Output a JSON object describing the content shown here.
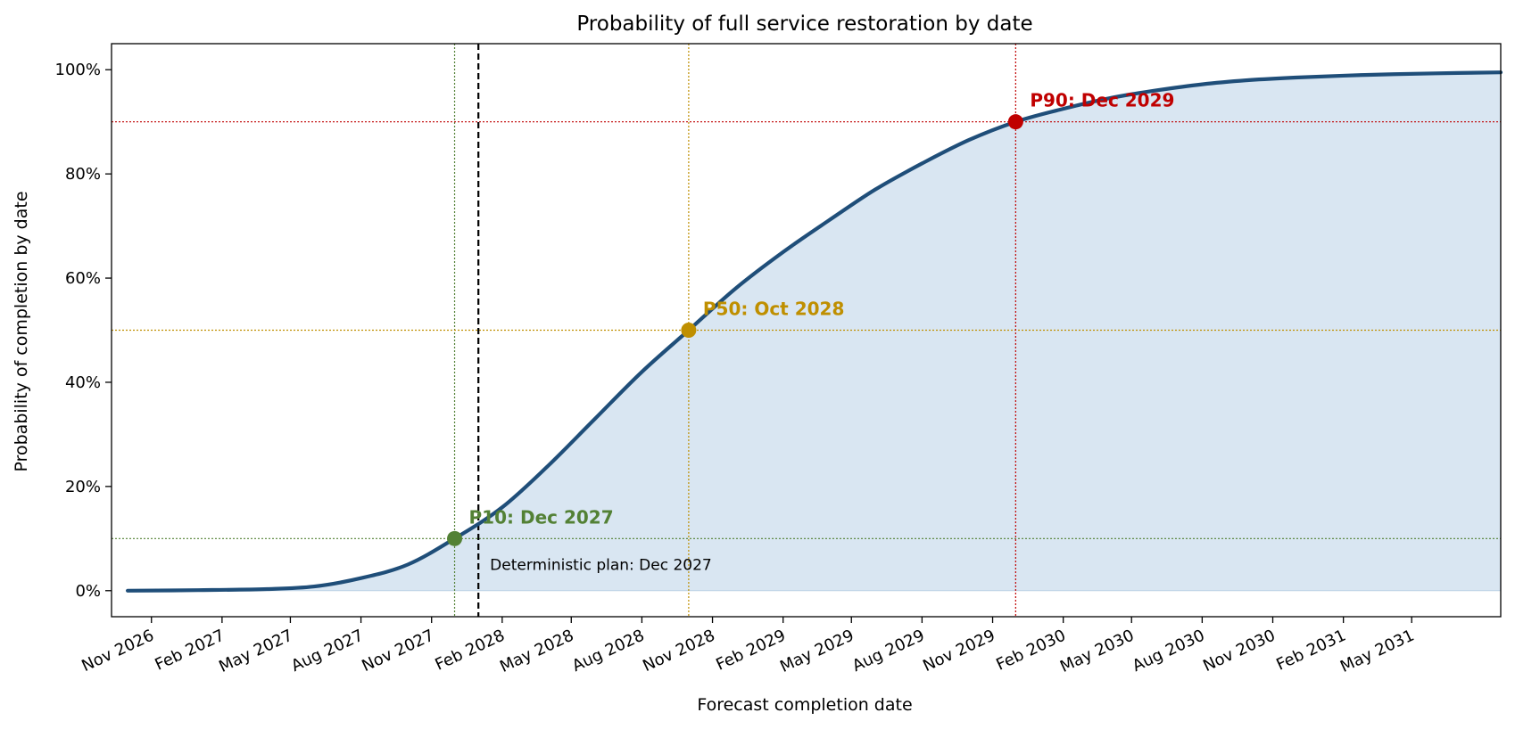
{
  "chart_data": {
    "type": "area",
    "title": "Probability of full service restoration by date",
    "xlabel": "Forecast completion date",
    "ylabel": "Probability of completion by date",
    "x_axis": {
      "type": "date",
      "range": [
        "2026-09-10",
        "2031-08-25"
      ],
      "ticks": [
        {
          "date": "2026-11-01",
          "label": "Nov 2026"
        },
        {
          "date": "2027-02-01",
          "label": "Feb 2027"
        },
        {
          "date": "2027-05-01",
          "label": "May 2027"
        },
        {
          "date": "2027-08-01",
          "label": "Aug 2027"
        },
        {
          "date": "2027-11-01",
          "label": "Nov 2027"
        },
        {
          "date": "2028-02-01",
          "label": "Feb 2028"
        },
        {
          "date": "2028-05-01",
          "label": "May 2028"
        },
        {
          "date": "2028-08-01",
          "label": "Aug 2028"
        },
        {
          "date": "2028-11-01",
          "label": "Nov 2028"
        },
        {
          "date": "2029-02-01",
          "label": "Feb 2029"
        },
        {
          "date": "2029-05-01",
          "label": "May 2029"
        },
        {
          "date": "2029-08-01",
          "label": "Aug 2029"
        },
        {
          "date": "2029-11-01",
          "label": "Nov 2029"
        },
        {
          "date": "2030-02-01",
          "label": "Feb 2030"
        },
        {
          "date": "2030-05-01",
          "label": "May 2030"
        },
        {
          "date": "2030-08-01",
          "label": "Aug 2030"
        },
        {
          "date": "2030-11-01",
          "label": "Nov 2030"
        },
        {
          "date": "2031-02-01",
          "label": "Feb 2031"
        },
        {
          "date": "2031-05-01",
          "label": "May 2031"
        }
      ]
    },
    "y_axis": {
      "range": [
        -0.05,
        1.05
      ],
      "ticks": [
        {
          "value": 0.0,
          "label": "0%"
        },
        {
          "value": 0.2,
          "label": "20%"
        },
        {
          "value": 0.4,
          "label": "40%"
        },
        {
          "value": 0.6,
          "label": "60%"
        },
        {
          "value": 0.8,
          "label": "80%"
        },
        {
          "value": 1.0,
          "label": "100%"
        }
      ]
    },
    "grid": false,
    "series": [
      {
        "color": "#1f4e79",
        "fill_color": "#d9e6f2",
        "points": [
          {
            "x": "2026-10-01",
            "y": 0.0
          },
          {
            "x": "2027-01-01",
            "y": 0.001
          },
          {
            "x": "2027-04-01",
            "y": 0.003
          },
          {
            "x": "2027-06-01",
            "y": 0.008
          },
          {
            "x": "2027-08-01",
            "y": 0.024
          },
          {
            "x": "2027-10-01",
            "y": 0.05
          },
          {
            "x": "2027-12-01",
            "y": 0.1
          },
          {
            "x": "2028-02-01",
            "y": 0.16
          },
          {
            "x": "2028-04-01",
            "y": 0.24
          },
          {
            "x": "2028-06-01",
            "y": 0.33
          },
          {
            "x": "2028-08-01",
            "y": 0.42
          },
          {
            "x": "2028-10-01",
            "y": 0.5
          },
          {
            "x": "2028-12-01",
            "y": 0.58
          },
          {
            "x": "2029-02-01",
            "y": 0.65
          },
          {
            "x": "2029-04-01",
            "y": 0.71
          },
          {
            "x": "2029-06-01",
            "y": 0.77
          },
          {
            "x": "2029-08-01",
            "y": 0.82
          },
          {
            "x": "2029-10-01",
            "y": 0.865
          },
          {
            "x": "2029-12-01",
            "y": 0.9
          },
          {
            "x": "2030-02-01",
            "y": 0.925
          },
          {
            "x": "2030-04-01",
            "y": 0.945
          },
          {
            "x": "2030-06-01",
            "y": 0.96
          },
          {
            "x": "2030-08-01",
            "y": 0.972
          },
          {
            "x": "2030-10-01",
            "y": 0.98
          },
          {
            "x": "2030-12-01",
            "y": 0.985
          },
          {
            "x": "2031-03-01",
            "y": 0.99
          },
          {
            "x": "2031-06-01",
            "y": 0.993
          },
          {
            "x": "2031-08-25",
            "y": 0.995
          }
        ]
      }
    ],
    "milestones": [
      {
        "x": "2027-12-01",
        "y": 0.1,
        "label": "P10: Dec 2027",
        "color": "#538135"
      },
      {
        "x": "2028-10-01",
        "y": 0.5,
        "label": "P50: Oct 2028",
        "color": "#bf8f00"
      },
      {
        "x": "2029-12-01",
        "y": 0.9,
        "label": "P90: Dec 2029",
        "color": "#c00000"
      }
    ],
    "reference_line": {
      "x": "2028-01-01",
      "label": "Deterministic plan: Dec 2027",
      "color": "#000000"
    }
  }
}
